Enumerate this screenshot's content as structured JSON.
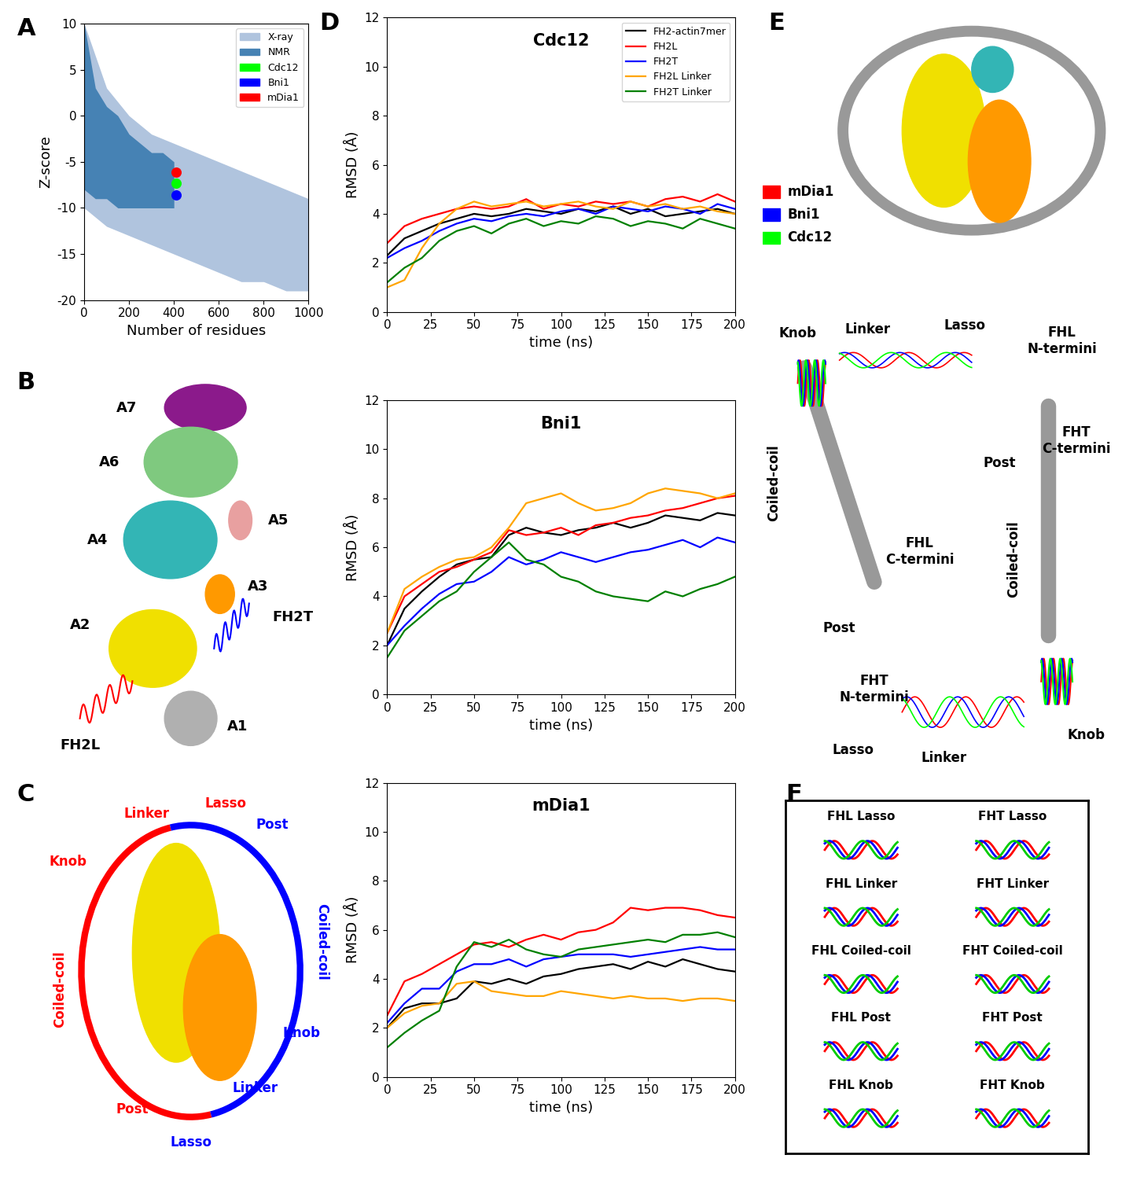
{
  "chart_data": [
    {
      "type": "scatter",
      "panel_label": "A",
      "x_label": "Number of residues",
      "y_label": "Z-score",
      "xlim": [
        0,
        1000
      ],
      "xticks": [
        0,
        200,
        400,
        600,
        800,
        1000
      ],
      "ylim": [
        -20,
        10
      ],
      "yticks": [
        -20,
        -15,
        -10,
        -5,
        0,
        5,
        10
      ],
      "legend": "upper right",
      "series": [
        {
          "name": "X-ray",
          "type": "area",
          "color": "#b0c4de",
          "x": [
            0,
            100,
            200,
            300,
            400,
            500,
            600,
            700,
            800,
            900,
            1000
          ],
          "lower": [
            -10,
            -12,
            -13,
            -14,
            -15,
            -16,
            -17,
            -18,
            -18,
            -19,
            -19
          ],
          "upper": [
            10,
            3,
            0,
            -2,
            -3,
            -4,
            -5,
            -6,
            -7,
            -8,
            -9
          ]
        },
        {
          "name": "NMR",
          "type": "area",
          "color": "#4682b4",
          "x": [
            0,
            50,
            100,
            150,
            200,
            250,
            300,
            350,
            400
          ],
          "lower": [
            -8,
            -9,
            -9,
            -10,
            -10,
            -10,
            -10,
            -10,
            -10
          ],
          "upper": [
            10,
            3,
            1,
            0,
            -2,
            -3,
            -4,
            -4,
            -5
          ]
        },
        {
          "name": "Cdc12",
          "type": "scatter",
          "marker": "o",
          "color": "#00ff00",
          "x": [
            410
          ],
          "values": [
            -7.3
          ]
        },
        {
          "name": "Bni1",
          "type": "scatter",
          "marker": "o",
          "color": "#0000ff",
          "x": [
            410
          ],
          "values": [
            -8.6
          ]
        },
        {
          "name": "mDia1",
          "type": "scatter",
          "marker": "o",
          "color": "#ff0000",
          "x": [
            410
          ],
          "values": [
            -6.1
          ]
        }
      ]
    },
    {
      "type": "line",
      "panel_label": "D",
      "title": "Cdc12",
      "x_label": "time (ns)",
      "y_label": "RMSD (Å)",
      "xlim": [
        0,
        200
      ],
      "xticks": [
        0,
        25,
        50,
        75,
        100,
        125,
        150,
        175,
        200
      ],
      "ylim": [
        0,
        12
      ],
      "yticks": [
        0,
        2,
        4,
        6,
        8,
        10,
        12
      ],
      "legend": "upper right",
      "x": [
        0,
        10,
        20,
        30,
        40,
        50,
        60,
        70,
        80,
        90,
        100,
        110,
        120,
        130,
        140,
        150,
        160,
        170,
        180,
        190,
        200
      ],
      "series": [
        {
          "name": "FH2-actin7mer",
          "color": "#000000",
          "values": [
            2.3,
            3.0,
            3.3,
            3.6,
            3.8,
            4.0,
            3.9,
            4.0,
            4.2,
            4.1,
            4.0,
            4.2,
            4.1,
            4.3,
            4.0,
            4.2,
            3.9,
            4.0,
            4.1,
            4.2,
            4.0
          ]
        },
        {
          "name": "FH2L",
          "color": "#ff0000",
          "values": [
            2.8,
            3.5,
            3.8,
            4.0,
            4.2,
            4.3,
            4.2,
            4.3,
            4.6,
            4.2,
            4.4,
            4.3,
            4.5,
            4.4,
            4.5,
            4.3,
            4.6,
            4.7,
            4.5,
            4.8,
            4.5
          ]
        },
        {
          "name": "FH2T",
          "color": "#0000ff",
          "values": [
            2.2,
            2.6,
            2.9,
            3.3,
            3.6,
            3.8,
            3.7,
            3.9,
            4.0,
            3.9,
            4.1,
            4.2,
            4.0,
            4.3,
            4.2,
            4.1,
            4.3,
            4.2,
            4.0,
            4.4,
            4.2
          ]
        },
        {
          "name": "FH2L Linker",
          "color": "#ffa500",
          "values": [
            1.0,
            1.3,
            2.6,
            3.6,
            4.2,
            4.5,
            4.3,
            4.4,
            4.5,
            4.3,
            4.4,
            4.5,
            4.3,
            4.2,
            4.5,
            4.3,
            4.4,
            4.2,
            4.3,
            4.1,
            4.0
          ]
        },
        {
          "name": "FH2T Linker",
          "color": "#008000",
          "values": [
            1.2,
            1.8,
            2.2,
            2.9,
            3.3,
            3.5,
            3.2,
            3.6,
            3.8,
            3.5,
            3.7,
            3.6,
            3.9,
            3.8,
            3.5,
            3.7,
            3.6,
            3.4,
            3.8,
            3.6,
            3.4
          ]
        }
      ]
    },
    {
      "type": "line",
      "title": "Bni1",
      "x_label": "time (ns)",
      "y_label": "RMSD (Å)",
      "xlim": [
        0,
        200
      ],
      "xticks": [
        0,
        25,
        50,
        75,
        100,
        125,
        150,
        175,
        200
      ],
      "ylim": [
        0,
        12
      ],
      "yticks": [
        0,
        2,
        4,
        6,
        8,
        10,
        12
      ],
      "x": [
        0,
        10,
        20,
        30,
        40,
        50,
        60,
        70,
        80,
        90,
        100,
        110,
        120,
        130,
        140,
        150,
        160,
        170,
        180,
        190,
        200
      ],
      "series": [
        {
          "name": "FH2-actin7mer",
          "color": "#000000",
          "values": [
            2.0,
            3.5,
            4.2,
            4.8,
            5.3,
            5.5,
            5.6,
            6.5,
            6.8,
            6.6,
            6.5,
            6.7,
            6.8,
            7.0,
            6.8,
            7.0,
            7.3,
            7.2,
            7.1,
            7.4,
            7.3
          ]
        },
        {
          "name": "FH2L",
          "color": "#ff0000",
          "values": [
            2.5,
            4.0,
            4.5,
            5.0,
            5.2,
            5.5,
            5.8,
            6.7,
            6.5,
            6.6,
            6.8,
            6.5,
            6.9,
            7.0,
            7.2,
            7.3,
            7.5,
            7.6,
            7.8,
            8.0,
            8.1
          ]
        },
        {
          "name": "FH2T",
          "color": "#0000ff",
          "values": [
            2.0,
            2.8,
            3.5,
            4.1,
            4.5,
            4.6,
            5.0,
            5.6,
            5.3,
            5.5,
            5.8,
            5.6,
            5.4,
            5.6,
            5.8,
            5.9,
            6.1,
            6.3,
            6.0,
            6.4,
            6.2
          ]
        },
        {
          "name": "FH2L Linker",
          "color": "#ffa500",
          "values": [
            2.5,
            4.3,
            4.8,
            5.2,
            5.5,
            5.6,
            6.0,
            6.8,
            7.8,
            8.0,
            8.2,
            7.8,
            7.5,
            7.6,
            7.8,
            8.2,
            8.4,
            8.3,
            8.2,
            8.0,
            8.2
          ]
        },
        {
          "name": "FH2T Linker",
          "color": "#008000",
          "values": [
            1.5,
            2.6,
            3.2,
            3.8,
            4.2,
            5.0,
            5.6,
            6.2,
            5.5,
            5.3,
            4.8,
            4.6,
            4.2,
            4.0,
            3.9,
            3.8,
            4.2,
            4.0,
            4.3,
            4.5,
            4.8
          ]
        }
      ]
    },
    {
      "type": "line",
      "title": "mDia1",
      "x_label": "time (ns)",
      "y_label": "RMSD (Å)",
      "xlim": [
        0,
        200
      ],
      "xticks": [
        0,
        25,
        50,
        75,
        100,
        125,
        150,
        175,
        200
      ],
      "ylim": [
        0,
        12
      ],
      "yticks": [
        0,
        2,
        4,
        6,
        8,
        10,
        12
      ],
      "x": [
        0,
        10,
        20,
        30,
        40,
        50,
        60,
        70,
        80,
        90,
        100,
        110,
        120,
        130,
        140,
        150,
        160,
        170,
        180,
        190,
        200
      ],
      "series": [
        {
          "name": "FH2-actin7mer",
          "color": "#000000",
          "values": [
            2.0,
            2.8,
            3.0,
            3.0,
            3.2,
            3.9,
            3.8,
            4.0,
            3.8,
            4.1,
            4.2,
            4.4,
            4.5,
            4.6,
            4.4,
            4.7,
            4.5,
            4.8,
            4.6,
            4.4,
            4.3
          ]
        },
        {
          "name": "FH2L",
          "color": "#ff0000",
          "values": [
            2.5,
            3.9,
            4.2,
            4.6,
            5.0,
            5.4,
            5.5,
            5.3,
            5.6,
            5.8,
            5.6,
            5.9,
            6.0,
            6.3,
            6.9,
            6.8,
            6.9,
            6.9,
            6.8,
            6.6,
            6.5
          ]
        },
        {
          "name": "FH2T",
          "color": "#0000ff",
          "values": [
            2.2,
            3.0,
            3.6,
            3.6,
            4.3,
            4.6,
            4.6,
            4.8,
            4.5,
            4.8,
            4.9,
            5.0,
            5.0,
            5.0,
            4.9,
            5.0,
            5.1,
            5.2,
            5.3,
            5.2,
            5.2
          ]
        },
        {
          "name": "FH2L Linker",
          "color": "#ffa500",
          "values": [
            2.0,
            2.6,
            2.9,
            3.0,
            3.8,
            3.9,
            3.5,
            3.4,
            3.3,
            3.3,
            3.5,
            3.4,
            3.3,
            3.2,
            3.3,
            3.2,
            3.2,
            3.1,
            3.2,
            3.2,
            3.1
          ]
        },
        {
          "name": "FH2T Linker",
          "color": "#008000",
          "values": [
            1.2,
            1.8,
            2.3,
            2.7,
            4.5,
            5.5,
            5.3,
            5.6,
            5.2,
            5.0,
            4.9,
            5.2,
            5.3,
            5.4,
            5.5,
            5.6,
            5.5,
            5.8,
            5.8,
            5.9,
            5.7
          ]
        }
      ]
    }
  ],
  "diagrams": {
    "B": {
      "panel_label": "B",
      "actin_subunits": [
        "A7",
        "A6",
        "A5",
        "A4",
        "A3",
        "A2",
        "A1"
      ],
      "formins": [
        "FH2L",
        "FH2T"
      ]
    },
    "C": {
      "panel_label": "C",
      "FH2L": [
        "Linker",
        "Lasso",
        "Knob",
        "Coiled-coil",
        "Post"
      ],
      "FH2T": [
        "Post",
        "Coiled-coil",
        "Knob",
        "Linker",
        "Lasso"
      ]
    },
    "E": {
      "panel_label": "E",
      "legend": [
        "mDia1",
        "Bni1",
        "Cdc12"
      ],
      "labels": [
        "Knob",
        "Linker",
        "Lasso",
        "FHL\nN-termini",
        "FHT\nC-termini",
        "Post",
        "Coiled-coil",
        "FHL\nC-termini",
        "Post",
        "Coiled-coil",
        "FHT\nN-termini",
        "Lasso",
        "Linker",
        "Knob"
      ]
    },
    "F": {
      "panel_label": "F",
      "labels": [
        "FHL Lasso",
        "FHT Lasso",
        "FHL Linker",
        "FHT Linker",
        "FHL Coiled-coil",
        "FHT Coiled-coil",
        "FHL Post",
        "FHT Post",
        "FHL Knob",
        "FHT Knob"
      ]
    }
  }
}
